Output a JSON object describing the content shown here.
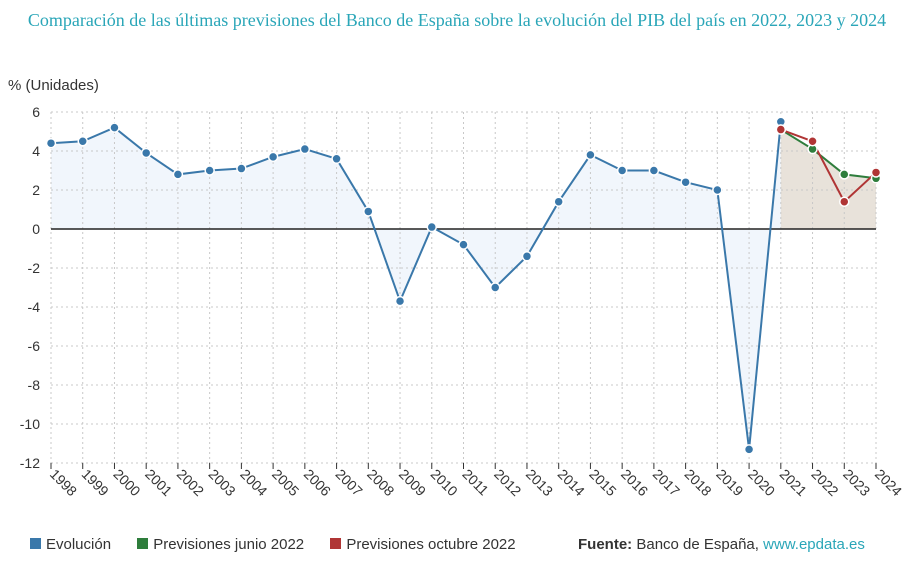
{
  "title": "Comparación de las últimas previsiones del Banco de España sobre la evolución del PIB del país en 2022, 2023 y 2024",
  "source": {
    "label": "Fuente:",
    "text": "Banco de España,",
    "site": "www.epdata.es"
  },
  "chart_data": {
    "type": "line",
    "title": "Comparación de las últimas previsiones del Banco de España sobre la evolución del PIB del país en 2022, 2023 y 2024",
    "ylabel": "% (Unidades)",
    "xlabel": "",
    "ylim": [
      -12,
      6
    ],
    "yticks": [
      -12,
      -10,
      -8,
      -6,
      -4,
      -2,
      0,
      2,
      4,
      6
    ],
    "x": [
      "1998",
      "1999",
      "2000",
      "2001",
      "2002",
      "2003",
      "2004",
      "2005",
      "2006",
      "2007",
      "2008",
      "2009",
      "2010",
      "2011",
      "2012",
      "2013",
      "2014",
      "2015",
      "2016",
      "2017",
      "2018",
      "2019",
      "2020",
      "2021",
      "2022",
      "2023",
      "2024"
    ],
    "grid": true,
    "legend_position": "bottom",
    "series": [
      {
        "name": "Evolución",
        "color": "#3a78aa",
        "x": [
          "1998",
          "1999",
          "2000",
          "2001",
          "2002",
          "2003",
          "2004",
          "2005",
          "2006",
          "2007",
          "2008",
          "2009",
          "2010",
          "2011",
          "2012",
          "2013",
          "2014",
          "2015",
          "2016",
          "2017",
          "2018",
          "2019",
          "2020",
          "2021"
        ],
        "values": [
          4.4,
          4.5,
          5.2,
          3.9,
          2.8,
          3.0,
          3.1,
          3.7,
          4.1,
          3.6,
          0.9,
          -3.7,
          0.1,
          -0.8,
          -3.0,
          -1.4,
          1.4,
          3.8,
          3.0,
          3.0,
          2.4,
          2.0,
          -11.3,
          5.5
        ]
      },
      {
        "name": "Previsiones junio 2022",
        "color": "#2e7d3c",
        "x": [
          "2021",
          "2022",
          "2023",
          "2024"
        ],
        "values": [
          5.1,
          4.1,
          2.8,
          2.6
        ]
      },
      {
        "name": "Previsiones octubre 2022",
        "color": "#b03535",
        "x": [
          "2021",
          "2022",
          "2023",
          "2024"
        ],
        "values": [
          5.1,
          4.5,
          1.4,
          2.9
        ]
      }
    ]
  }
}
